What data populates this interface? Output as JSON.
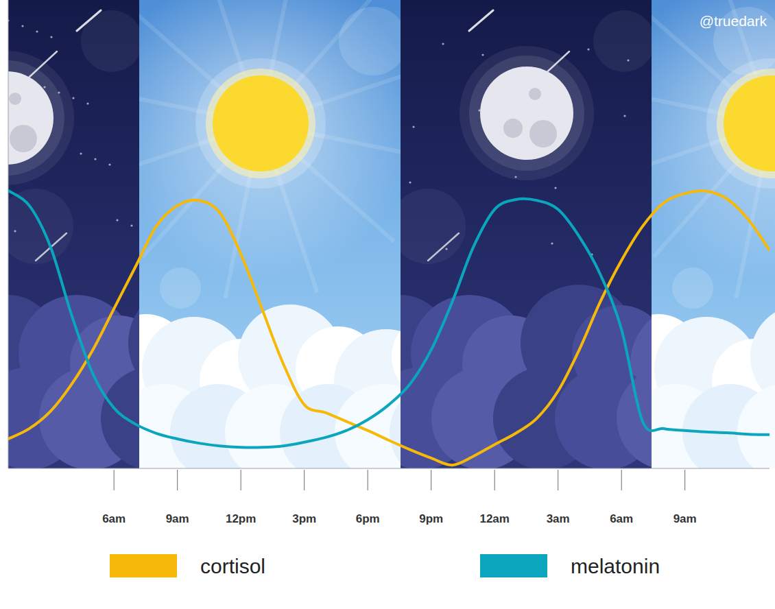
{
  "chart_data": {
    "type": "line",
    "annotations": [
      "@truedark"
    ],
    "x": [
      1,
      2,
      3,
      4,
      5,
      6,
      7,
      8,
      9,
      10,
      11,
      12,
      13,
      14,
      15,
      16,
      17,
      18,
      19,
      20,
      21,
      22,
      23,
      24,
      25,
      26,
      27,
      28,
      29,
      30,
      31,
      32,
      33,
      34,
      35,
      36,
      37
    ],
    "xlim": [
      1,
      37
    ],
    "xticks": [
      {
        "value": 6,
        "label": "6am"
      },
      {
        "value": 9,
        "label": "9am"
      },
      {
        "value": 12,
        "label": "12pm"
      },
      {
        "value": 15,
        "label": "3pm"
      },
      {
        "value": 18,
        "label": "6pm"
      },
      {
        "value": 21,
        "label": "9pm"
      },
      {
        "value": 24,
        "label": "12am"
      },
      {
        "value": 27,
        "label": "3am"
      },
      {
        "value": 30,
        "label": "6am"
      },
      {
        "value": 33,
        "label": "9am"
      }
    ],
    "ylim": [
      0,
      100
    ],
    "tick_labels": "x",
    "grid": false,
    "legend": "bottom",
    "series": [
      {
        "name": "cortisol",
        "color": "#f6b90a",
        "values": [
          6.3,
          8.5,
          12.2,
          18.0,
          25.3,
          34.1,
          42.9,
          51.7,
          56.1,
          57.2,
          54.6,
          45.8,
          34.1,
          22.4,
          13.6,
          11.9,
          10.0,
          8.1,
          6.0,
          4.0,
          2.2,
          0.7,
          2.6,
          5.1,
          7.5,
          10.7,
          16.5,
          25.3,
          35.6,
          44.4,
          51.7,
          56.7,
          58.7,
          59.2,
          57.5,
          53.1,
          46.6
        ]
      },
      {
        "name": "melatonin",
        "color": "#0ba6bd",
        "values": [
          59.3,
          56.1,
          47.3,
          32.7,
          20.2,
          12.9,
          9.5,
          7.5,
          6.3,
          5.4,
          4.8,
          4.5,
          4.5,
          4.8,
          5.6,
          6.6,
          8.1,
          10.4,
          13.6,
          18.0,
          25.3,
          35.6,
          47.3,
          55.3,
          57.4,
          57.2,
          55.3,
          49.5,
          41.4,
          29.7,
          10.0,
          8.5,
          8.1,
          7.8,
          7.6,
          7.3,
          7.2
        ]
      }
    ]
  }
}
